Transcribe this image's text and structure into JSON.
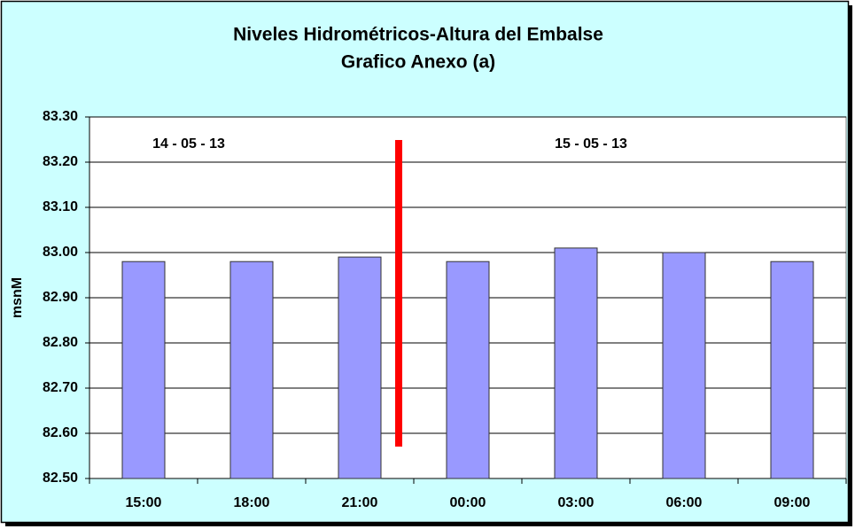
{
  "chart_data": {
    "type": "bar",
    "title": "Niveles Hidrométricos-Altura del Embalse",
    "subtitle": "Grafico Anexo (a)",
    "y_label": "msnM",
    "annotations": [
      "14 - 05 - 13",
      "15 - 05 - 13"
    ],
    "categories": [
      "15:00",
      "18:00",
      "21:00",
      "00:00",
      "03:00",
      "06:00",
      "09:00"
    ],
    "values": [
      82.98,
      82.98,
      82.99,
      82.98,
      83.01,
      83.0,
      82.98
    ],
    "color": "#9999ff",
    "ylim": [
      82.5,
      83.3
    ],
    "yticks": [
      {
        "value": 82.5,
        "label": "82.50"
      },
      {
        "value": 82.6,
        "label": "82.60"
      },
      {
        "value": 82.7,
        "label": "82.70"
      },
      {
        "value": 82.8,
        "label": "82.80"
      },
      {
        "value": 82.9,
        "label": "82.90"
      },
      {
        "value": 83.0,
        "label": "83.00"
      },
      {
        "value": 83.1,
        "label": "83.10"
      },
      {
        "value": 83.2,
        "label": "83.20"
      },
      {
        "value": 83.3,
        "label": "83.30"
      }
    ],
    "grid": true
  }
}
